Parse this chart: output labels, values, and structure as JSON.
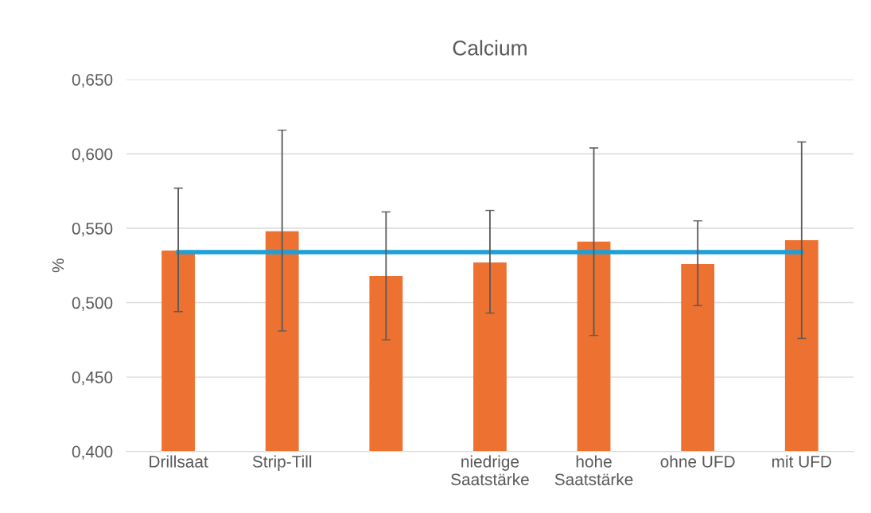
{
  "chart_data": {
    "type": "bar",
    "title": "Calcium",
    "ylabel": "%",
    "categories": [
      "Drillsaat",
      "Strip-Till",
      null,
      "niedrige\nSaatstärke",
      "hohe\nSaatstärke",
      "ohne UFD",
      "mit UFD"
    ],
    "series": [
      {
        "color": "#ed7131",
        "values": [
          0.535,
          0.548,
          0.518,
          0.527,
          0.541,
          0.526,
          0.542
        ],
        "errors": [
          [
            0.494,
            0.577
          ],
          [
            0.481,
            0.616
          ],
          [
            0.475,
            0.561
          ],
          [
            0.493,
            0.562
          ],
          [
            0.478,
            0.604
          ],
          [
            0.498,
            0.555
          ],
          [
            0.476,
            0.608
          ]
        ]
      },
      {
        "type": "line",
        "color": "#1ea0d6",
        "values": [
          0.534,
          0.534,
          0.534,
          0.534,
          0.534,
          0.534,
          0.534
        ]
      }
    ],
    "ylim": [
      0.4,
      0.65
    ],
    "yticks": [
      {
        "value": 0.4,
        "label": "0,400"
      },
      {
        "value": 0.45,
        "label": "0,450"
      },
      {
        "value": 0.5,
        "label": "0,500"
      },
      {
        "value": 0.55,
        "label": "0,550"
      },
      {
        "value": 0.6,
        "label": "0,600"
      },
      {
        "value": 0.65,
        "label": "0,650"
      }
    ],
    "grid": "y"
  }
}
